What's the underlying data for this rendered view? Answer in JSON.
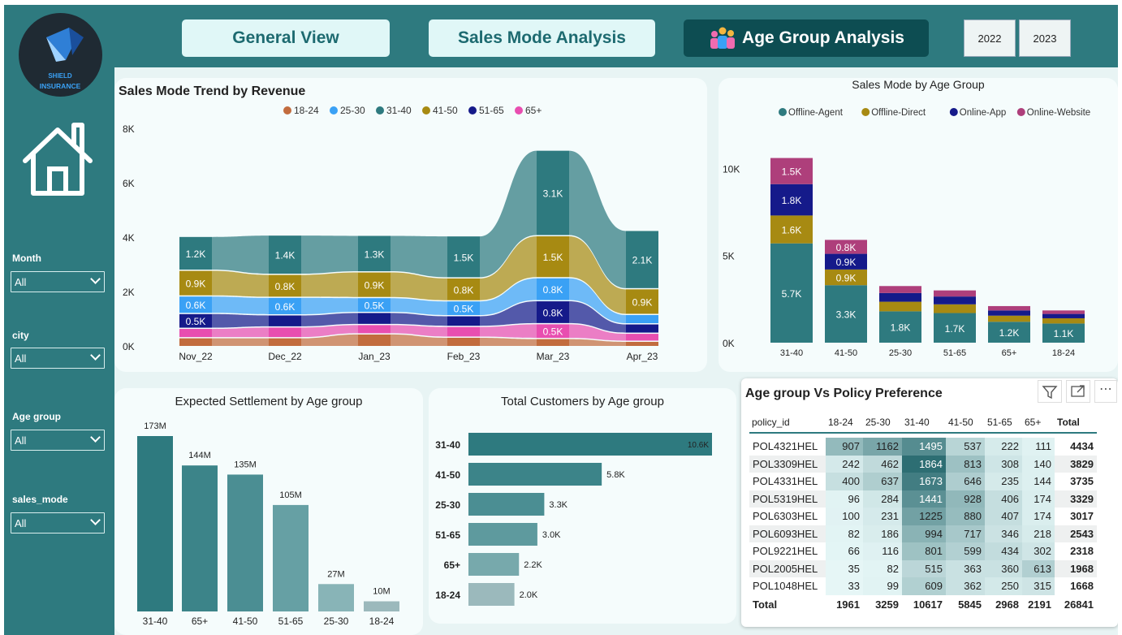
{
  "logo": {
    "line1": "SHIELD",
    "line2": "INSURANCE"
  },
  "nav": [
    {
      "label": "General View"
    },
    {
      "label": "Sales Mode Analysis"
    },
    {
      "label": "Age Group Analysis"
    }
  ],
  "years": [
    "2022",
    "2023"
  ],
  "filters": [
    {
      "label": "Month",
      "value": "All"
    },
    {
      "label": "city",
      "value": "All"
    },
    {
      "label": "Age group",
      "value": "All"
    },
    {
      "label": "sales_mode",
      "value": "All"
    }
  ],
  "colors": {
    "sidebar": "#2e7a7f",
    "teal": "#2e7a7f",
    "gold": "#a78a12",
    "navy": "#151a8a",
    "magenta": "#ae3f7b",
    "blue": "#3aa1f5",
    "orange": "#c26c3e",
    "pink": "#e84eb0"
  },
  "trend": {
    "title": "Sales Mode Trend by Revenue",
    "legend": [
      {
        "name": "18-24",
        "color": "#c26c3e"
      },
      {
        "name": "25-30",
        "color": "#3aa1f5"
      },
      {
        "name": "31-40",
        "color": "#2e7a7f"
      },
      {
        "name": "41-50",
        "color": "#a78a12"
      },
      {
        "name": "51-65",
        "color": "#151a8a"
      },
      {
        "name": "65+",
        "color": "#e84eb0"
      }
    ],
    "yticks": [
      "8K",
      "6K",
      "4K",
      "2K",
      "0K"
    ],
    "labels": {
      "31-40": [
        "1.2K",
        "1.4K",
        "1.3K",
        "1.5K",
        "3.1K",
        "2.1K"
      ],
      "41-50": [
        "0.9K",
        "0.8K",
        "0.9K",
        "0.8K",
        "1.5K",
        "0.9K"
      ],
      "25-30": [
        "0.6K",
        "0.6K",
        "0.5K",
        "0.5K",
        "0.8K",
        ""
      ],
      "51-65": [
        "0.5K",
        "",
        "",
        "",
        "0.8K",
        ""
      ],
      "65+": [
        "",
        "",
        "",
        "",
        "0.5K",
        ""
      ]
    }
  },
  "chart_data": [
    {
      "type": "area",
      "title": "Sales Mode Trend by Revenue",
      "x": [
        "Nov_22",
        "Dec_22",
        "Jan_23",
        "Feb_23",
        "Mar_23",
        "Apr_23"
      ],
      "ylim": [
        0,
        8000
      ],
      "series": [
        {
          "name": "18-24",
          "values": [
            280,
            280,
            420,
            300,
            250,
            150
          ]
        },
        {
          "name": "25-30",
          "values": [
            600,
            600,
            500,
            500,
            800,
            300
          ]
        },
        {
          "name": "31-40",
          "values": [
            1200,
            1400,
            1300,
            1500,
            3100,
            2100
          ]
        },
        {
          "name": "41-50",
          "values": [
            900,
            800,
            900,
            800,
            1500,
            900
          ]
        },
        {
          "name": "51-65",
          "values": [
            500,
            400,
            400,
            350,
            800,
            300
          ]
        },
        {
          "name": "65+",
          "values": [
            300,
            350,
            300,
            350,
            500,
            250
          ]
        }
      ]
    },
    {
      "type": "bar",
      "title": "Sales Mode by Age Group",
      "categories": [
        "31-40",
        "41-50",
        "25-30",
        "51-65",
        "65+",
        "18-24"
      ],
      "ylim": [
        0,
        11000
      ],
      "yticks": [
        "10K",
        "5K",
        "0K"
      ],
      "series": [
        {
          "name": "Offline-Agent",
          "color": "#2e7a7f",
          "values": [
            5700,
            3300,
            1800,
            1700,
            1200,
            1100
          ],
          "labels": [
            "5.7K",
            "3.3K",
            "1.8K",
            "1.7K",
            "1.2K",
            "1.1K"
          ]
        },
        {
          "name": "Offline-Direct",
          "color": "#a78a12",
          "values": [
            1600,
            900,
            550,
            500,
            350,
            300
          ],
          "labels": [
            "1.6K",
            "0.9K",
            "",
            "",
            "",
            ""
          ]
        },
        {
          "name": "Online-App",
          "color": "#151a8a",
          "values": [
            1800,
            900,
            500,
            450,
            300,
            250
          ],
          "labels": [
            "1.8K",
            "0.9K",
            "",
            "",
            "",
            ""
          ]
        },
        {
          "name": "Online-Website",
          "color": "#ae3f7b",
          "values": [
            1500,
            800,
            400,
            350,
            250,
            200
          ],
          "labels": [
            "1.5K",
            "0.8K",
            "",
            "",
            "",
            ""
          ]
        }
      ]
    },
    {
      "type": "bar",
      "title": "Expected Settlement by Age group",
      "categories": [
        "31-40",
        "65+",
        "41-50",
        "51-65",
        "25-30",
        "18-24"
      ],
      "values": [
        173,
        144,
        135,
        105,
        27,
        10
      ],
      "labels": [
        "173M",
        "144M",
        "135M",
        "105M",
        "27M",
        "10M"
      ]
    },
    {
      "type": "bar",
      "title": "Total Customers by Age group",
      "categories": [
        "31-40",
        "41-50",
        "25-30",
        "51-65",
        "65+",
        "18-24"
      ],
      "values": [
        10600,
        5800,
        3300,
        3000,
        2200,
        2000
      ],
      "labels": [
        "10.6K",
        "5.8K",
        "3.3K",
        "3.0K",
        "2.2K",
        "2.0K"
      ]
    },
    {
      "type": "table",
      "title": "Age group Vs Policy Preference",
      "columns": [
        "policy_id",
        "18-24",
        "25-30",
        "31-40",
        "41-50",
        "51-65",
        "65+",
        "Total"
      ],
      "rows": [
        [
          "POL4321HEL",
          907,
          1162,
          1495,
          537,
          222,
          111,
          4434
        ],
        [
          "POL3309HEL",
          242,
          462,
          1864,
          813,
          308,
          140,
          3829
        ],
        [
          "POL4331HEL",
          400,
          637,
          1673,
          646,
          235,
          144,
          3735
        ],
        [
          "POL5319HEL",
          96,
          284,
          1441,
          928,
          406,
          174,
          3329
        ],
        [
          "POL6303HEL",
          100,
          231,
          1225,
          880,
          407,
          174,
          3017
        ],
        [
          "POL6093HEL",
          82,
          186,
          994,
          717,
          346,
          218,
          2543
        ],
        [
          "POL9221HEL",
          66,
          116,
          801,
          599,
          434,
          302,
          2318
        ],
        [
          "POL2005HEL",
          35,
          82,
          515,
          363,
          360,
          613,
          1968
        ],
        [
          "POL1048HEL",
          33,
          99,
          609,
          362,
          250,
          315,
          1668
        ]
      ],
      "totals": [
        "Total",
        1961,
        3259,
        10617,
        5845,
        2968,
        2191,
        26841
      ]
    }
  ],
  "agegroup": {
    "title": "Sales Mode by Age Group",
    "legend": [
      {
        "name": "Offline-Agent",
        "color": "#2e7a7f"
      },
      {
        "name": "Offline-Direct",
        "color": "#a78a12"
      },
      {
        "name": "Online-App",
        "color": "#151a8a"
      },
      {
        "name": "Online-Website",
        "color": "#ae3f7b"
      }
    ]
  },
  "settlement": {
    "title": "Expected Settlement by Age group"
  },
  "customers": {
    "title": "Total Customers by Age group"
  },
  "matrix": {
    "title": "Age group Vs Policy Preference"
  }
}
